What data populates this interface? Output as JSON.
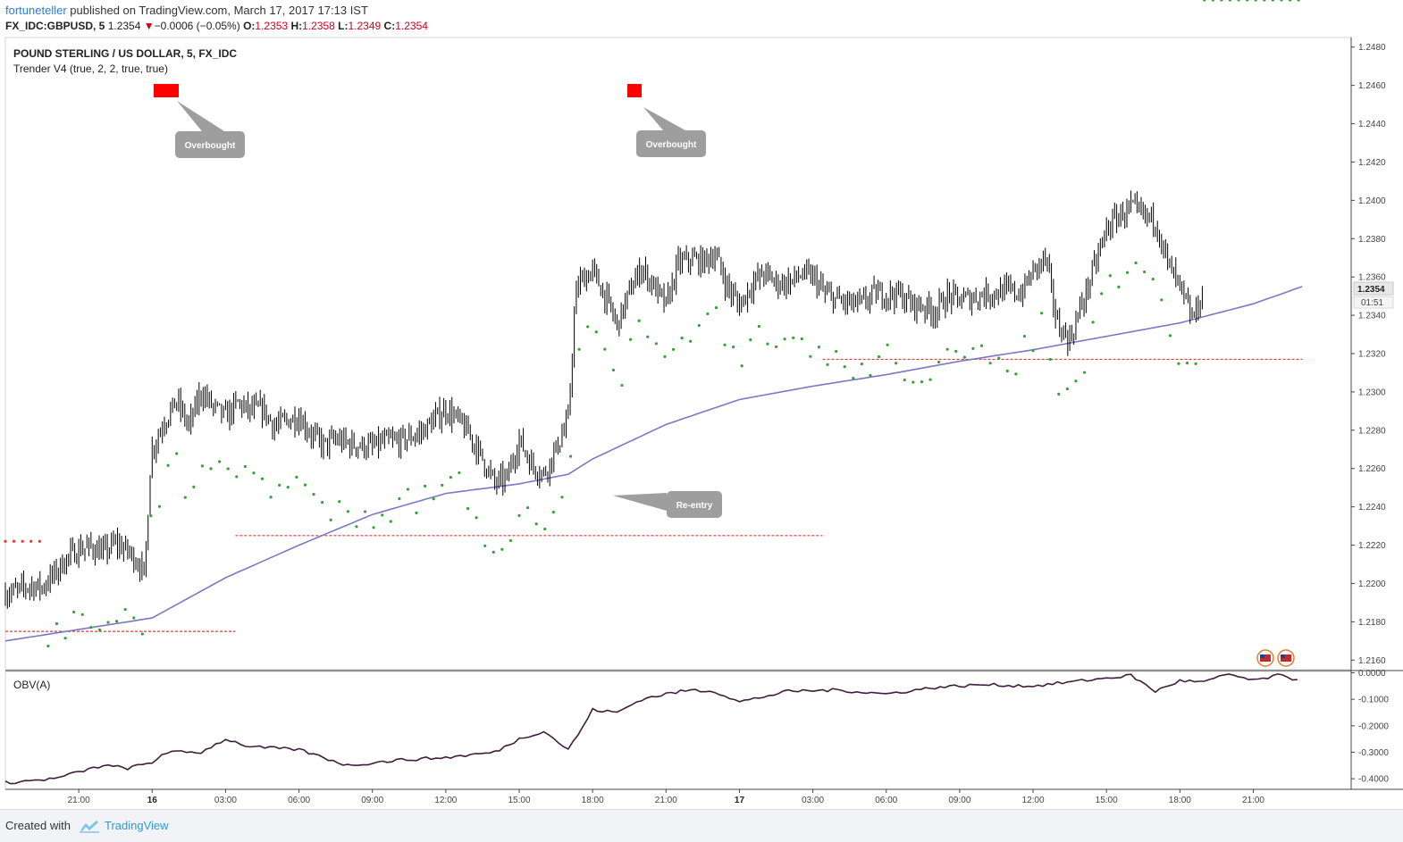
{
  "header": {
    "author": "fortuneteller",
    "published_text": "published on TradingView.com, March 17, 2017 17:13 IST"
  },
  "ohlc": {
    "symbol": "FX_IDC:GBPUSD, 5",
    "last": "1.2354",
    "change_arrow": "▼",
    "change": "−0.0006 (−0.05%)",
    "o_label": "O:",
    "o": "1.2353",
    "h_label": "H:",
    "h": "1.2358",
    "l_label": "L:",
    "l": "1.2349",
    "c_label": "C:",
    "c": "1.2354"
  },
  "legend": {
    "title": "POUND STERLING / US DOLLAR, 5, FX_IDC",
    "indicator": "Trender V4 (true, 2, 2, true, true)",
    "obv": "OBV(A)"
  },
  "price_badge": {
    "value": "1.2354",
    "countdown": "01:51"
  },
  "annotations": {
    "overbought_1": "Overbought",
    "overbought_2": "Overbought",
    "reentry": "Re-entry"
  },
  "footer": {
    "created_with": "Created with",
    "brand": "TradingView"
  },
  "colors": {
    "candle": "#000000",
    "ma": "#7b78c4",
    "dots_green": "#3a9e3a",
    "dots_red": "#e53935",
    "support_red": "#e53935",
    "callout": "#9e9e9e",
    "signal_red": "#ff0000",
    "obv": "#3d1f3d"
  },
  "chart_data": [
    {
      "type": "line",
      "title": "POUND STERLING / US DOLLAR, 5, FX_IDC",
      "ylim": [
        1.2155,
        1.2485
      ],
      "y_ticks": [
        "1.2160",
        "1.2180",
        "1.2200",
        "1.2220",
        "1.2240",
        "1.2260",
        "1.2280",
        "1.2300",
        "1.2320",
        "1.2340",
        "1.2360",
        "1.2380",
        "1.2400",
        "1.2420",
        "1.2440",
        "1.2460",
        "1.2480"
      ],
      "x_ticks": [
        "21:00",
        "16",
        "03:00",
        "06:00",
        "09:00",
        "12:00",
        "15:00",
        "18:00",
        "21:00",
        "17",
        "03:00",
        "06:00",
        "09:00",
        "12:00",
        "15:00",
        "18:00",
        "21:00"
      ],
      "x_range_hours": [
        -6,
        49
      ],
      "price_series_hours": [
        -6,
        -5.5,
        -5,
        -4.5,
        -4,
        -3.5,
        -3,
        -2.5,
        -2,
        -1.5,
        -1,
        -0.5,
        -0.3,
        -0.1,
        0,
        0.5,
        1,
        1.5,
        2,
        2.5,
        3,
        3.5,
        4,
        4.5,
        5,
        5.5,
        6,
        6.5,
        7,
        7.5,
        8,
        8.5,
        9,
        9.5,
        10,
        10.5,
        11,
        11.5,
        12,
        12.5,
        13,
        13.5,
        14,
        14.5,
        15,
        15.5,
        16,
        16.5,
        17,
        17.3,
        17.5,
        18,
        18.5,
        19,
        19.5,
        20,
        20.5,
        21,
        21.5,
        22,
        22.5,
        23,
        23.5,
        24,
        24.5,
        25,
        25.5,
        26,
        26.5,
        27,
        27.5,
        28,
        28.5,
        29,
        29.5,
        30,
        30.5,
        31,
        31.5,
        32,
        32.5,
        33,
        33.5,
        34,
        34.5,
        35,
        35.5,
        36,
        36.5,
        37,
        37.5,
        38,
        38.5,
        39,
        39.5,
        40,
        40.5,
        41,
        41.5,
        42,
        42.5,
        43,
        43.5,
        44,
        44.5,
        45,
        45.5,
        46,
        46.5,
        47
      ],
      "price_series_values": [
        1.2195,
        1.2196,
        1.2199,
        1.2198,
        1.2205,
        1.2213,
        1.2218,
        1.2219,
        1.2216,
        1.2221,
        1.2217,
        1.221,
        1.2203,
        1.2258,
        1.227,
        1.2285,
        1.2295,
        1.2282,
        1.23,
        1.2292,
        1.2287,
        1.2294,
        1.229,
        1.2291,
        1.2282,
        1.2285,
        1.2287,
        1.2278,
        1.2272,
        1.2275,
        1.2273,
        1.2272,
        1.2271,
        1.2274,
        1.2274,
        1.2276,
        1.2279,
        1.2285,
        1.2291,
        1.2285,
        1.2277,
        1.2265,
        1.2252,
        1.2255,
        1.2275,
        1.2262,
        1.2257,
        1.227,
        1.2285,
        1.235,
        1.2358,
        1.2363,
        1.235,
        1.2335,
        1.2352,
        1.2365,
        1.2355,
        1.2345,
        1.2367,
        1.2369,
        1.2368,
        1.2372,
        1.2355,
        1.2345,
        1.2356,
        1.2362,
        1.2357,
        1.2357,
        1.2361,
        1.236,
        1.2351,
        1.2348,
        1.2346,
        1.2346,
        1.2351,
        1.2351,
        1.2351,
        1.2346,
        1.2345,
        1.2342,
        1.235,
        1.2348,
        1.2349,
        1.2351,
        1.2352,
        1.2353,
        1.2351,
        1.2363,
        1.237,
        1.2335,
        1.2327,
        1.2346,
        1.2365,
        1.2385,
        1.2392,
        1.2396,
        1.2392,
        1.239,
        1.2367,
        1.2354,
        1.2338,
        1.2352
      ],
      "ma_hours": [
        -6,
        0,
        3,
        6,
        9,
        12,
        15,
        17,
        18,
        21,
        24,
        27,
        30,
        33,
        36,
        39,
        42,
        45,
        47
      ],
      "ma_values": [
        1.217,
        1.2182,
        1.2203,
        1.222,
        1.2236,
        1.2247,
        1.2252,
        1.2257,
        1.2265,
        1.2283,
        1.2296,
        1.2303,
        1.2309,
        1.2316,
        1.2322,
        1.2329,
        1.2336,
        1.2346,
        1.2355
      ],
      "support_lines": [
        {
          "from_hour": -6,
          "to_hour": 3.4,
          "value": 1.2175
        },
        {
          "from_hour": 3.4,
          "to_hour": 27.4,
          "value": 1.2225
        },
        {
          "from_hour": 27.4,
          "to_hour": 47,
          "value": 1.2317
        }
      ]
    },
    {
      "type": "line",
      "title": "OBV(A)",
      "ylim": [
        -0.44,
        0.005
      ],
      "y_ticks": [
        "0.0000",
        "-0.1000",
        "-0.2000",
        "-0.3000",
        "-0.4000"
      ],
      "hours": [
        -6,
        -4,
        -2,
        -1,
        0,
        0.5,
        1,
        2,
        3,
        4,
        6,
        8,
        9,
        10,
        12,
        14,
        15,
        16,
        17,
        17.5,
        18,
        19,
        20,
        21,
        22,
        23,
        24,
        26,
        28,
        30,
        32,
        34,
        36,
        38,
        40,
        41,
        42,
        43,
        44,
        45,
        46,
        47
      ],
      "values": [
        -0.415,
        -0.4,
        -0.35,
        -0.36,
        -0.34,
        -0.3,
        -0.3,
        -0.3,
        -0.25,
        -0.28,
        -0.29,
        -0.35,
        -0.34,
        -0.33,
        -0.32,
        -0.3,
        -0.25,
        -0.22,
        -0.29,
        -0.22,
        -0.14,
        -0.15,
        -0.1,
        -0.08,
        -0.065,
        -0.07,
        -0.11,
        -0.07,
        -0.065,
        -0.08,
        -0.055,
        -0.045,
        -0.05,
        -0.03,
        -0.01,
        -0.07,
        -0.03,
        -0.035,
        -0.005,
        -0.03,
        -0.01,
        -0.03
      ]
    }
  ]
}
